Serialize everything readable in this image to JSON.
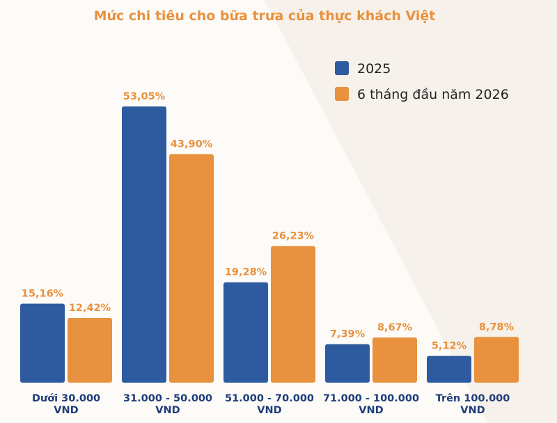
{
  "chart_data": {
    "type": "bar",
    "title": "Mức chi tiêu cho bữa trưa của thực khách Việt",
    "categories": [
      [
        "Dưới 30.000",
        "VND"
      ],
      [
        "31.000 - 50.000",
        "VND"
      ],
      [
        "51.000 - 70.000",
        "VND"
      ],
      [
        "71.000 - 100.000",
        "VND"
      ],
      [
        "Trên 100.000",
        "VND"
      ]
    ],
    "series": [
      {
        "name": "2025",
        "color": "#2e5aa0",
        "values": [
          15.16,
          53.05,
          19.28,
          7.39,
          5.12
        ],
        "labels": [
          "15,16%",
          "53,05%",
          "19,28%",
          "7,39%",
          "5,12%"
        ]
      },
      {
        "name": "6 tháng đầu năm 2026",
        "color": "#e8913e",
        "values": [
          12.42,
          43.9,
          26.23,
          8.67,
          8.78
        ],
        "labels": [
          "12,42%",
          "43,90%",
          "26,23%",
          "8,67%",
          "8,78%"
        ]
      }
    ],
    "ylim": [
      0,
      55
    ],
    "legend": "top-right",
    "grid": false,
    "title_color": "#e8913e",
    "category_label_color": "#1f3d7a",
    "background_color": "#fdfbf8"
  }
}
